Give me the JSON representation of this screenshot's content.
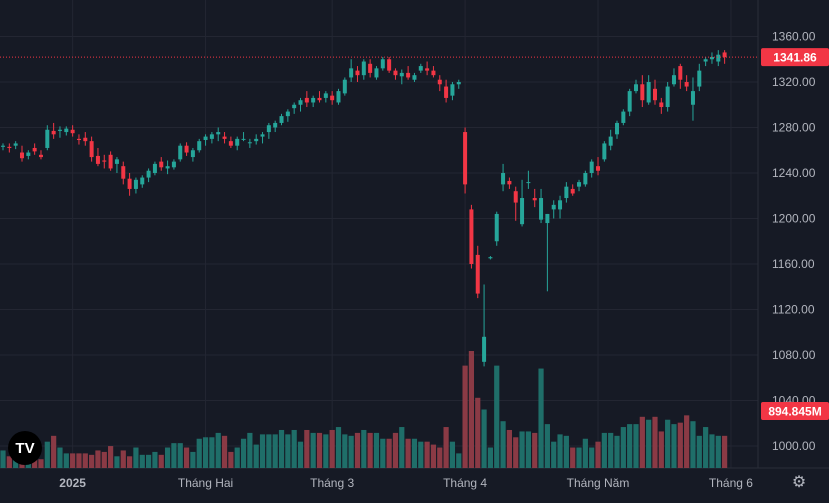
{
  "chart_data": {
    "type": "candlestick",
    "price_axis": {
      "ticks": [
        1000,
        1040,
        1080,
        1120,
        1160,
        1200,
        1240,
        1280,
        1320,
        1360
      ]
    },
    "last_price": {
      "value": 1341.86,
      "label": "1341.86",
      "color": "#f23645"
    },
    "volume_label": {
      "value": "894.845M",
      "color": "#f23645"
    },
    "time_labels": [
      {
        "label": "2025",
        "index": 11
      },
      {
        "label": "Tháng Hai",
        "index": 32
      },
      {
        "label": "Tháng 3",
        "index": 52
      },
      {
        "label": "Tháng 4",
        "index": 73
      },
      {
        "label": "Tháng Năm",
        "index": 94
      },
      {
        "label": "Tháng 6",
        "index": 115
      }
    ],
    "colors": {
      "up": "#26a69a",
      "down": "#f23645",
      "up_volume": "#1f6e69",
      "down_volume": "#8a3a45",
      "grid": "#232632",
      "background": "#161a25",
      "axis_text": "#b2b5be"
    },
    "candles": [
      [
        1263,
        1266,
        1260,
        1264,
        12
      ],
      [
        1263,
        1266,
        1258,
        1262,
        8
      ],
      [
        1264,
        1268,
        1261,
        1266,
        6
      ],
      [
        1258,
        1264,
        1250,
        1253,
        10
      ],
      [
        1255,
        1260,
        1252,
        1258,
        11
      ],
      [
        1262,
        1266,
        1256,
        1259,
        14
      ],
      [
        1256,
        1260,
        1252,
        1254,
        6
      ],
      [
        1262,
        1282,
        1260,
        1278,
        18
      ],
      [
        1277,
        1284,
        1270,
        1274,
        22
      ],
      [
        1277,
        1281,
        1271,
        1278,
        14
      ],
      [
        1276,
        1281,
        1273,
        1279,
        10
      ],
      [
        1278,
        1282,
        1272,
        1275,
        10
      ],
      [
        1270,
        1274,
        1265,
        1269,
        10
      ],
      [
        1271,
        1276,
        1264,
        1268,
        10
      ],
      [
        1268,
        1272,
        1250,
        1254,
        9
      ],
      [
        1255,
        1262,
        1246,
        1248,
        12
      ],
      [
        1251,
        1256,
        1244,
        1250,
        11
      ],
      [
        1256,
        1259,
        1242,
        1244,
        15
      ],
      [
        1248,
        1254,
        1240,
        1252,
        8
      ],
      [
        1246,
        1250,
        1230,
        1235,
        12
      ],
      [
        1235,
        1240,
        1220,
        1226,
        8
      ],
      [
        1226,
        1236,
        1222,
        1234,
        14
      ],
      [
        1230,
        1238,
        1227,
        1236,
        9
      ],
      [
        1236,
        1244,
        1232,
        1242,
        9
      ],
      [
        1240,
        1250,
        1238,
        1248,
        11
      ],
      [
        1250,
        1254,
        1242,
        1245,
        9
      ],
      [
        1244,
        1251,
        1239,
        1246,
        14
      ],
      [
        1245,
        1252,
        1243,
        1250,
        17
      ],
      [
        1252,
        1266,
        1250,
        1264,
        17
      ],
      [
        1264,
        1267,
        1255,
        1258,
        14
      ],
      [
        1254,
        1262,
        1250,
        1260,
        11
      ],
      [
        1260,
        1270,
        1258,
        1268,
        20
      ],
      [
        1269,
        1274,
        1264,
        1272,
        21
      ],
      [
        1270,
        1276,
        1266,
        1274,
        21
      ],
      [
        1274,
        1280,
        1268,
        1276,
        24
      ],
      [
        1272,
        1276,
        1266,
        1270,
        22
      ],
      [
        1268,
        1272,
        1262,
        1264,
        11
      ],
      [
        1264,
        1272,
        1260,
        1270,
        14
      ],
      [
        1270,
        1276,
        1268,
        1270,
        20
      ],
      [
        1267,
        1270,
        1262,
        1267,
        24
      ],
      [
        1268,
        1274,
        1265,
        1270,
        16
      ],
      [
        1272,
        1276,
        1266,
        1274,
        23
      ],
      [
        1276,
        1284,
        1270,
        1282,
        23
      ],
      [
        1280,
        1286,
        1276,
        1284,
        23
      ],
      [
        1284,
        1292,
        1282,
        1290,
        26
      ],
      [
        1290,
        1296,
        1285,
        1294,
        23
      ],
      [
        1297,
        1302,
        1292,
        1300,
        26
      ],
      [
        1300,
        1306,
        1294,
        1304,
        18
      ],
      [
        1306,
        1312,
        1298,
        1302,
        26
      ],
      [
        1302,
        1308,
        1298,
        1306,
        24
      ],
      [
        1306,
        1312,
        1302,
        1304,
        24
      ],
      [
        1306,
        1312,
        1302,
        1310,
        23
      ],
      [
        1308,
        1312,
        1300,
        1304,
        26
      ],
      [
        1302,
        1314,
        1300,
        1312,
        28
      ],
      [
        1310,
        1324,
        1308,
        1322,
        23
      ],
      [
        1324,
        1340,
        1320,
        1332,
        22
      ],
      [
        1330,
        1334,
        1320,
        1326,
        24
      ],
      [
        1326,
        1340,
        1322,
        1338,
        26
      ],
      [
        1336,
        1340,
        1324,
        1328,
        24
      ],
      [
        1324,
        1334,
        1322,
        1332,
        24
      ],
      [
        1332,
        1342,
        1330,
        1340,
        20
      ],
      [
        1340,
        1342,
        1328,
        1330,
        20
      ],
      [
        1330,
        1332,
        1322,
        1326,
        24
      ],
      [
        1325,
        1331,
        1318,
        1328,
        28
      ],
      [
        1328,
        1334,
        1322,
        1324,
        20
      ],
      [
        1322,
        1328,
        1320,
        1326,
        20
      ],
      [
        1330,
        1336,
        1328,
        1334,
        18
      ],
      [
        1332,
        1338,
        1326,
        1330,
        18
      ],
      [
        1330,
        1334,
        1324,
        1326,
        16
      ],
      [
        1322,
        1326,
        1312,
        1318,
        14
      ],
      [
        1316,
        1322,
        1302,
        1306,
        28
      ],
      [
        1308,
        1320,
        1304,
        1318,
        18
      ],
      [
        1318,
        1322,
        1314,
        1320,
        10
      ],
      [
        1276,
        1280,
        1222,
        1230,
        70
      ],
      [
        1208,
        1212,
        1156,
        1160,
        80
      ],
      [
        1168,
        1176,
        1130,
        1134,
        48
      ],
      [
        1074,
        1142,
        1070,
        1096,
        40
      ],
      [
        1165,
        1167,
        1164,
        1166,
        14
      ],
      [
        1180,
        1206,
        1176,
        1204,
        70
      ],
      [
        1230,
        1248,
        1224,
        1240,
        32
      ],
      [
        1233,
        1236,
        1226,
        1230,
        26
      ],
      [
        1224,
        1228,
        1198,
        1214,
        21
      ],
      [
        1195,
        1234,
        1193,
        1218,
        25
      ],
      [
        1232,
        1242,
        1226,
        1232,
        25
      ],
      [
        1218,
        1226,
        1210,
        1216,
        24
      ],
      [
        1199,
        1226,
        1196,
        1218,
        68
      ],
      [
        1196,
        1204,
        1136,
        1204,
        30
      ],
      [
        1208,
        1216,
        1200,
        1212,
        18
      ],
      [
        1208,
        1220,
        1200,
        1216,
        23
      ],
      [
        1218,
        1232,
        1214,
        1228,
        22
      ],
      [
        1226,
        1230,
        1220,
        1222,
        14
      ],
      [
        1228,
        1234,
        1224,
        1232,
        14
      ],
      [
        1230,
        1242,
        1228,
        1240,
        20
      ],
      [
        1240,
        1252,
        1236,
        1250,
        14
      ],
      [
        1246,
        1254,
        1238,
        1242,
        18
      ],
      [
        1252,
        1268,
        1250,
        1266,
        24
      ],
      [
        1264,
        1278,
        1260,
        1272,
        24
      ],
      [
        1274,
        1286,
        1270,
        1284,
        22
      ],
      [
        1284,
        1296,
        1282,
        1294,
        28
      ],
      [
        1294,
        1314,
        1290,
        1312,
        30
      ],
      [
        1312,
        1322,
        1310,
        1318,
        30
      ],
      [
        1318,
        1326,
        1298,
        1304,
        35
      ],
      [
        1302,
        1326,
        1300,
        1320,
        33
      ],
      [
        1314,
        1322,
        1300,
        1304,
        35
      ],
      [
        1302,
        1306,
        1292,
        1298,
        25
      ],
      [
        1298,
        1320,
        1294,
        1316,
        33
      ],
      [
        1318,
        1332,
        1316,
        1326,
        30
      ],
      [
        1334,
        1336,
        1314,
        1322,
        31
      ],
      [
        1320,
        1326,
        1312,
        1316,
        36
      ],
      [
        1300,
        1324,
        1286,
        1312,
        32
      ],
      [
        1316,
        1336,
        1312,
        1330,
        22
      ],
      [
        1338,
        1342,
        1334,
        1340,
        28
      ],
      [
        1340,
        1346,
        1336,
        1342,
        23
      ],
      [
        1338,
        1348,
        1334,
        1344,
        22
      ],
      [
        1346,
        1348,
        1336,
        1341.86,
        22
      ]
    ]
  }
}
